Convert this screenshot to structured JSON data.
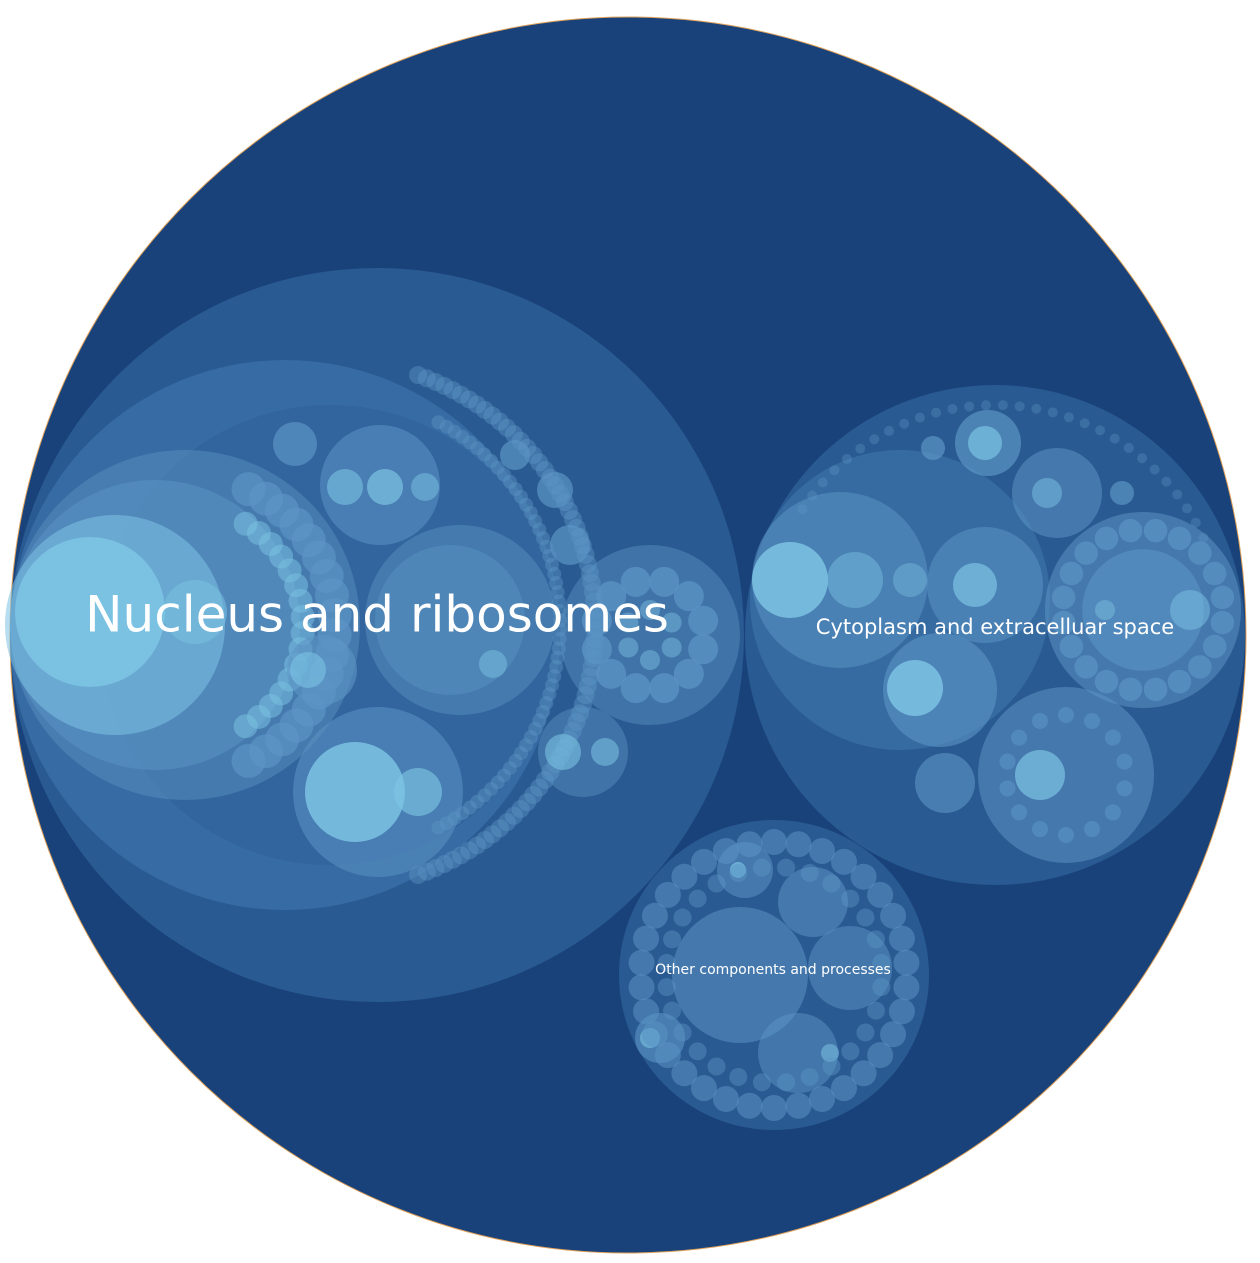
{
  "title": "",
  "colors": {
    "background": "#ffffff",
    "root_fill": "#19427b",
    "root_stroke": "#e0a25a",
    "group_fill": "#2a5a92",
    "subgroup_fill": "#3a6fa6",
    "leaf_mid": "#5b94c4",
    "leaf_light": "#7cc3e3",
    "label": "#ffffff"
  },
  "groups": [
    {
      "name": "Nucleus and ribosomes",
      "label": "Nucleus and ribosomes"
    },
    {
      "name": "Cytoplasm and extracellular space",
      "label": "Cytoplasm and extracelluar space"
    },
    {
      "name": "Other components and processes",
      "label": "Other components and processes"
    }
  ]
}
